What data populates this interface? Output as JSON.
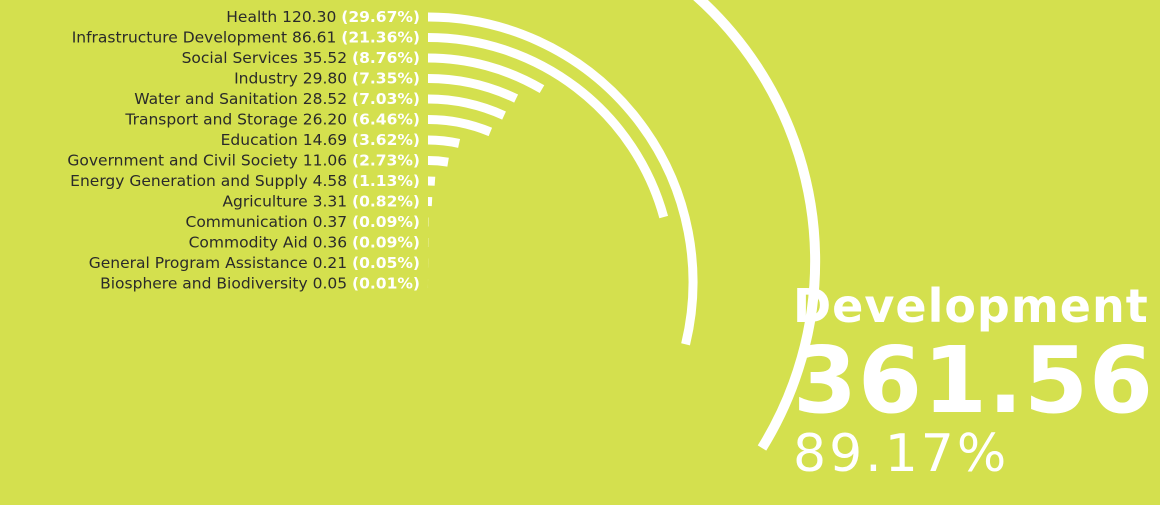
{
  "chart_data": {
    "type": "radial-bar",
    "unit_percent_suffix": "%",
    "categories": [
      "Health",
      "Infrastructure Development",
      "Social Services",
      "Industry",
      "Water and Sanitation",
      "Transport and Storage",
      "Education",
      "Government and Civil Society",
      "Energy Generation and Supply",
      "Agriculture",
      "Communication",
      "Commodity Aid",
      "General Program Assistance",
      "Biosphere and Biodiversity"
    ],
    "values": [
      120.3,
      86.61,
      35.52,
      29.8,
      28.52,
      26.2,
      14.69,
      11.06,
      4.58,
      3.31,
      0.37,
      0.36,
      0.21,
      0.05
    ],
    "value_labels": [
      "120.30",
      "86.61",
      "35.52",
      "29.80",
      "28.52",
      "26.20",
      "14.69",
      "11.06",
      "4.58",
      "3.31",
      "0.37",
      "0.36",
      "0.21",
      "0.05"
    ],
    "percent_labels": [
      "(29.67%)",
      "(21.36%)",
      "(8.76%)",
      "(7.35%)",
      "(7.03%)",
      "(6.46%)",
      "(3.62%)",
      "(2.73%)",
      "(1.13%)",
      "(0.82%)",
      "(0.09%)",
      "(0.09%)",
      "(0.05%)",
      "(0.01%)"
    ],
    "total_label": "Development",
    "total_value": "361.56",
    "total_percent": "89.17%"
  },
  "colors": {
    "background": "#d4e04e",
    "bar": "#ffffff",
    "label": "#2a2a2a",
    "percent": "#ffffff"
  }
}
